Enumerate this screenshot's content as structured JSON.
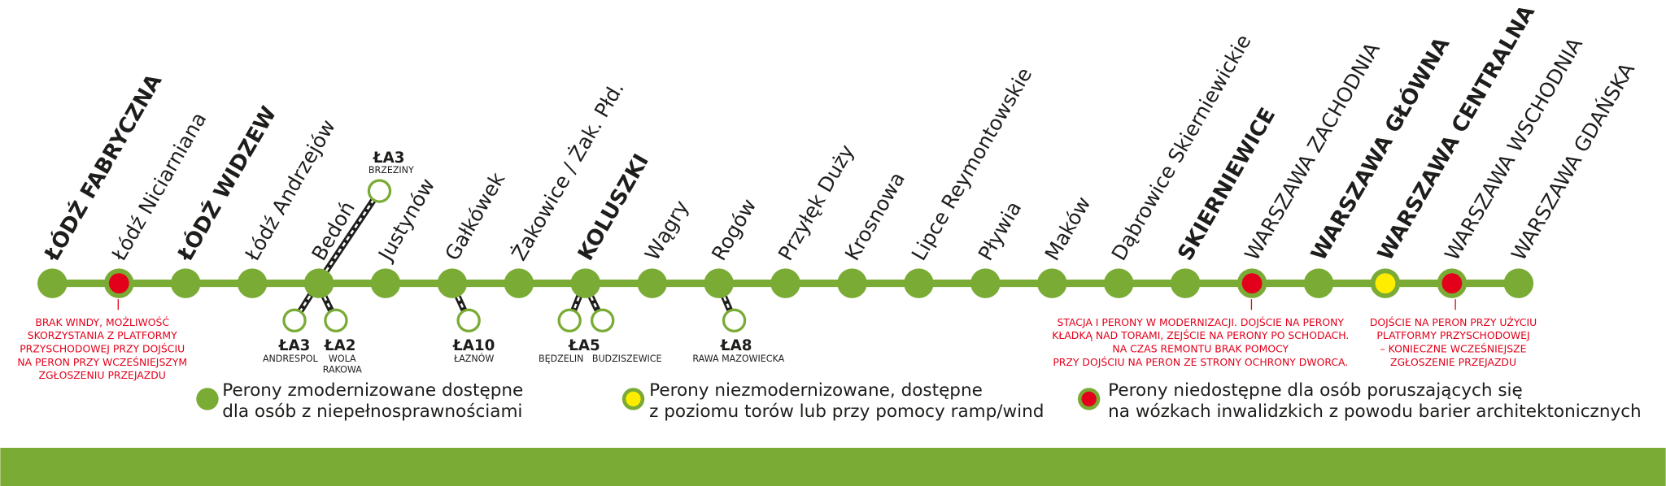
{
  "stations": [
    {
      "name": "ŁÓDŹ FABRYCZNA",
      "bold": true,
      "color": "#7aab35"
    },
    {
      "name": "Łódź Niciarniana",
      "bold": false,
      "color": "#e2001a"
    },
    {
      "name": "ŁÓDŹ WIDZEW",
      "bold": true,
      "color": "#7aab35"
    },
    {
      "name": "Łódź Andrzejów",
      "bold": false,
      "color": "#7aab35"
    },
    {
      "name": "Bedoń",
      "bold": false,
      "color": "#7aab35"
    },
    {
      "name": "Justynów",
      "bold": false,
      "color": "#7aab35"
    },
    {
      "name": "Gałkówek",
      "bold": false,
      "color": "#7aab35"
    },
    {
      "name": "Żakowice / Żak. Płd.",
      "bold": false,
      "color": "#7aab35"
    },
    {
      "name": "KOLUSZKI",
      "bold": true,
      "color": "#7aab35"
    },
    {
      "name": "Wągry",
      "bold": false,
      "color": "#7aab35"
    },
    {
      "name": "Rogów",
      "bold": false,
      "color": "#7aab35"
    },
    {
      "name": "Przyłęk Duży",
      "bold": false,
      "color": "#7aab35"
    },
    {
      "name": "Krosnowa",
      "bold": false,
      "color": "#7aab35"
    },
    {
      "name": "Lipce Reymontowskie",
      "bold": false,
      "color": "#7aab35"
    },
    {
      "name": "Pływia",
      "bold": false,
      "color": "#7aab35"
    },
    {
      "name": "Maków",
      "bold": false,
      "color": "#7aab35"
    },
    {
      "name": "Dąbrowice Skierniewickie",
      "bold": false,
      "color": "#7aab35"
    },
    {
      "name": "SKIERNIEWICE",
      "bold": true,
      "color": "#7aab35"
    },
    {
      "name": "WARSZAWA ZACHODNIA",
      "bold": false,
      "color": "#e2001a"
    },
    {
      "name": "WARSZAWA GŁÓWNA",
      "bold": true,
      "color": "#7aab35"
    },
    {
      "name": "WARSZAWA CENTRALNA",
      "bold": true,
      "color": "#ffed00"
    },
    {
      "name": "WARSZAWA WSCHODNIA",
      "bold": false,
      "color": "#e2001a"
    },
    {
      "name": "WARSZAWA GDAŃSKA",
      "bold": false,
      "color": "#7aab35"
    }
  ],
  "branches": [
    {
      "code": "ŁA3",
      "places": [
        "BRZEZINY"
      ]
    },
    {
      "code": "ŁA3",
      "places": [
        "ANDRESPOL"
      ]
    },
    {
      "code": "ŁA2",
      "places": [
        "WOLA",
        "RAKOWA"
      ]
    },
    {
      "code": "ŁA10",
      "places": [
        "ŁAZNÓW"
      ]
    },
    {
      "code": "ŁA5",
      "places": [
        "BĘDZELIN",
        "BUDZISZEWICE"
      ]
    },
    {
      "code": "ŁA8",
      "places": [
        "RAWA MAZOWIECKA"
      ]
    }
  ],
  "notes": [
    [
      "BRAK WINDY, MOŻLIWOŚĆ",
      "SKORZYSTANIA Z PLATFORMY",
      "PRZYSCHODOWEJ PRZY DOJŚCIU",
      "NA PERON PRZY WCZEŚNIEJSZYM",
      "ZGŁOSZENIU PRZEJAZDU"
    ],
    [
      "STACJA I PERONY W MODERNIZACJI. DOJŚCIE NA PERONY",
      "KŁADKĄ NAD TORAMI, ZEJŚCIE NA PERONY PO SCHODACH.",
      "NA CZAS REMONTU BRAK POMOCY",
      "PRZY DOJŚCIU NA PERON ZE STRONY OCHRONY DWORCA."
    ],
    [
      "DOJŚCIE NA PERON PRZY UŻYCIU",
      "PLATFORMY PRZYSCHODOWEJ",
      "– KONIECZNE WCZEŚNIEJSZE",
      "ZGŁOSZENIE PRZEJAZDU"
    ]
  ],
  "legend": [
    [
      "Perony zmodernizowane dostępne",
      "dla osób z niepełnosprawnościami"
    ],
    [
      "Perony niezmodernizowane, dostępne",
      "z poziomu torów lub przy pomocy ramp/wind"
    ],
    [
      "Perony niedostępne dla osób poruszających się",
      "na wózkach inwalidzkich z powodu barier architektonicznych"
    ]
  ]
}
